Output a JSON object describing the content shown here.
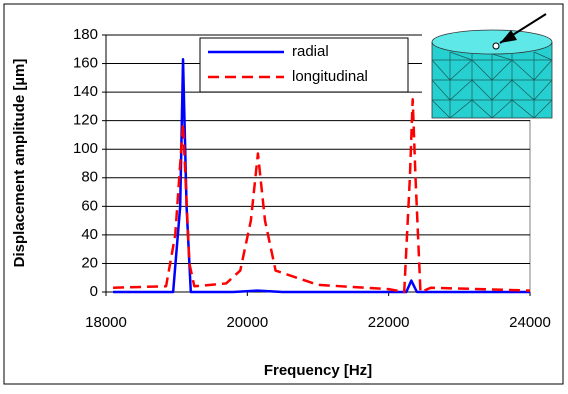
{
  "chart_data": {
    "type": "line",
    "xlabel": "Frequency [Hz]",
    "ylabel": "Displacement amplitude [µm]",
    "xlim": [
      18000,
      24000
    ],
    "xticks": [
      18000,
      20000,
      22000,
      24000
    ],
    "ylim": [
      0,
      180
    ],
    "yticks": [
      0,
      20,
      40,
      60,
      80,
      100,
      120,
      140,
      160,
      180
    ],
    "grid": true,
    "legend": "upper center",
    "series": [
      {
        "name": "radial",
        "color": "#0000ff",
        "dash": false,
        "x": [
          18100,
          18950,
          19050,
          19090,
          19140,
          19200,
          19800,
          20150,
          20500,
          22250,
          22320,
          22400,
          24000
        ],
        "values": [
          0,
          0,
          60,
          163,
          60,
          0,
          0,
          1,
          0,
          0,
          8,
          0,
          0
        ]
      },
      {
        "name": "longitudinal",
        "color": "#ff0000",
        "dash": true,
        "x": [
          18100,
          18850,
          18980,
          19090,
          19180,
          19250,
          19700,
          19900,
          20050,
          20150,
          20250,
          20400,
          21000,
          22000,
          22220,
          22300,
          22340,
          22380,
          22450,
          22600,
          24000
        ],
        "values": [
          3,
          4,
          40,
          118,
          20,
          4,
          6,
          15,
          50,
          97,
          50,
          15,
          5,
          2,
          0,
          80,
          135,
          80,
          0,
          3,
          1
        ]
      }
    ]
  }
}
